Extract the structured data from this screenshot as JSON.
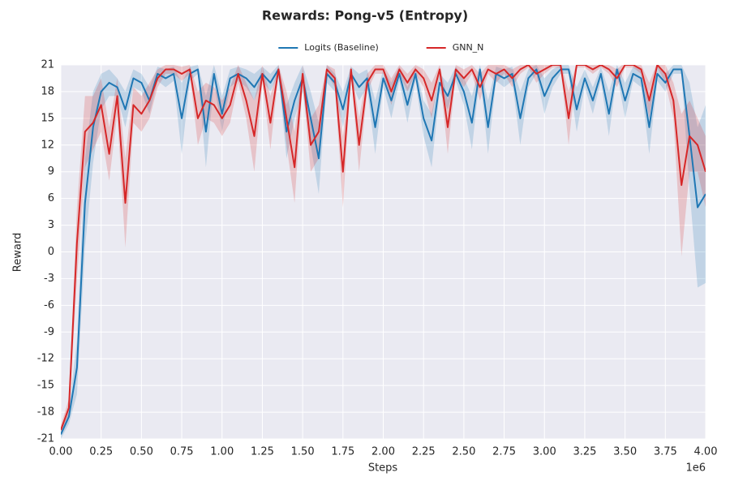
{
  "chart_data": {
    "type": "line",
    "title": "Rewards: Pong-v5 (Entropy)",
    "xlabel": "Steps",
    "ylabel": "Reward",
    "x_offset_label": "1e6",
    "x": [
      0,
      50000,
      100000,
      150000,
      200000,
      250000,
      300000,
      350000,
      400000,
      450000,
      500000,
      550000,
      600000,
      650000,
      700000,
      750000,
      800000,
      850000,
      900000,
      950000,
      1000000,
      1050000,
      1100000,
      1150000,
      1200000,
      1250000,
      1300000,
      1350000,
      1400000,
      1450000,
      1500000,
      1550000,
      1600000,
      1650000,
      1700000,
      1750000,
      1800000,
      1850000,
      1900000,
      1950000,
      2000000,
      2050000,
      2100000,
      2150000,
      2200000,
      2250000,
      2300000,
      2350000,
      2400000,
      2450000,
      2500000,
      2550000,
      2600000,
      2650000,
      2700000,
      2750000,
      2800000,
      2850000,
      2900000,
      2950000,
      3000000,
      3050000,
      3100000,
      3150000,
      3200000,
      3250000,
      3300000,
      3350000,
      3400000,
      3450000,
      3500000,
      3550000,
      3600000,
      3650000,
      3700000,
      3750000,
      3800000,
      3850000,
      3900000,
      3950000,
      4000000
    ],
    "series": [
      {
        "name": "Logits (Baseline)",
        "color": "#1f77b4",
        "values": [
          -20.5,
          -18.5,
          -13,
          5.5,
          14,
          18,
          19,
          18.5,
          16,
          19.5,
          19,
          17,
          20,
          19.5,
          20,
          15,
          20,
          20.5,
          13.5,
          20,
          15.5,
          19.5,
          20,
          19.5,
          18.5,
          20,
          19,
          20.5,
          13.5,
          17,
          19.5,
          15,
          10.5,
          20,
          19,
          16,
          20,
          18.5,
          19.5,
          14,
          19.5,
          17,
          20,
          16.5,
          20,
          15,
          12.5,
          19,
          17.5,
          20,
          18,
          14.5,
          20.5,
          14,
          20,
          19.5,
          20,
          15,
          19.5,
          20.5,
          17.5,
          19.5,
          20.5,
          20.5,
          16,
          19.5,
          17,
          20,
          15.5,
          20.5,
          17,
          20,
          19.5,
          14,
          20,
          19,
          20.5,
          20.5,
          13,
          5,
          6.5
        ],
        "errors": [
          0.5,
          0.8,
          3,
          5,
          4,
          2,
          1.5,
          1,
          2,
          1,
          1,
          1.5,
          0.8,
          1,
          0.8,
          4,
          0.8,
          0.5,
          4,
          1,
          2,
          1,
          0.8,
          1,
          1.5,
          0.8,
          1,
          0.5,
          3,
          2,
          1.5,
          3,
          4,
          1,
          1,
          2,
          0.8,
          1.5,
          1,
          3,
          1,
          2,
          0.8,
          2,
          0.8,
          2,
          3,
          1,
          1.5,
          0.8,
          1.5,
          3,
          0.5,
          3,
          0.8,
          1,
          0.8,
          3,
          1,
          0.5,
          2,
          1,
          0.5,
          0.5,
          2.5,
          1,
          1.5,
          0.8,
          2.5,
          0.5,
          2,
          0.8,
          1,
          3,
          0.8,
          1,
          0.5,
          0.5,
          6,
          9,
          10
        ]
      },
      {
        "name": "GNN_N",
        "color": "#d62728",
        "values": [
          -20,
          -17.5,
          1,
          13.5,
          14.5,
          16.5,
          11,
          17.5,
          5.5,
          16.5,
          15.5,
          17,
          19.5,
          20.5,
          20.5,
          20,
          20.5,
          15,
          17,
          16.5,
          15,
          16.5,
          20,
          17,
          13,
          20,
          14.5,
          20.5,
          15,
          9.5,
          20,
          12,
          13.5,
          20.5,
          19.5,
          9,
          20.5,
          12,
          19,
          20.5,
          20.5,
          18,
          20.5,
          19,
          20.5,
          19.5,
          17,
          20.5,
          14,
          20.5,
          19.5,
          20.5,
          18.5,
          20.5,
          20,
          20.5,
          19.5,
          20.5,
          21,
          20,
          20.5,
          21,
          21,
          15,
          21,
          21,
          20.5,
          21,
          20.5,
          19.5,
          21,
          21,
          20.5,
          17,
          21,
          20,
          17,
          7.5,
          13,
          12,
          9
        ],
        "errors": [
          0.5,
          1,
          4,
          4,
          3,
          3,
          3,
          2,
          5,
          2,
          2,
          2,
          1,
          0.5,
          0.5,
          0.8,
          0.5,
          3,
          2,
          2,
          2,
          2,
          1,
          2,
          4,
          1,
          3,
          0.5,
          3,
          4,
          1,
          3,
          3,
          0.5,
          1,
          4,
          0.5,
          3,
          1,
          0.5,
          0.5,
          1.5,
          0.5,
          1,
          0.5,
          1,
          2,
          0.5,
          3,
          0.5,
          1,
          0.5,
          1.5,
          0.5,
          1,
          0.5,
          1,
          0.5,
          0.3,
          1,
          0.5,
          0.3,
          0.3,
          3,
          0.3,
          0.3,
          0.5,
          0.3,
          0.5,
          1,
          0.3,
          0.3,
          0.5,
          2,
          0.3,
          1,
          2,
          8,
          4,
          3,
          4
        ]
      }
    ],
    "xlim": [
      0,
      4000000
    ],
    "xticks": [
      {
        "value": 0,
        "label": "0.00"
      },
      {
        "value": 250000,
        "label": "0.25"
      },
      {
        "value": 500000,
        "label": "0.50"
      },
      {
        "value": 750000,
        "label": "0.75"
      },
      {
        "value": 1000000,
        "label": "1.00"
      },
      {
        "value": 1250000,
        "label": "1.25"
      },
      {
        "value": 1500000,
        "label": "1.50"
      },
      {
        "value": 1750000,
        "label": "1.75"
      },
      {
        "value": 2000000,
        "label": "2.00"
      },
      {
        "value": 2250000,
        "label": "2.25"
      },
      {
        "value": 2500000,
        "label": "2.50"
      },
      {
        "value": 2750000,
        "label": "2.75"
      },
      {
        "value": 3000000,
        "label": "3.00"
      },
      {
        "value": 3250000,
        "label": "3.25"
      },
      {
        "value": 3500000,
        "label": "3.50"
      },
      {
        "value": 3750000,
        "label": "3.75"
      },
      {
        "value": 4000000,
        "label": "4.00"
      }
    ],
    "ylim": [
      -21,
      21
    ],
    "yticks": [
      -21,
      -18,
      -15,
      -12,
      -9,
      -6,
      -3,
      0,
      3,
      6,
      9,
      12,
      15,
      18,
      21
    ],
    "grid": true,
    "legend": "upper center"
  }
}
